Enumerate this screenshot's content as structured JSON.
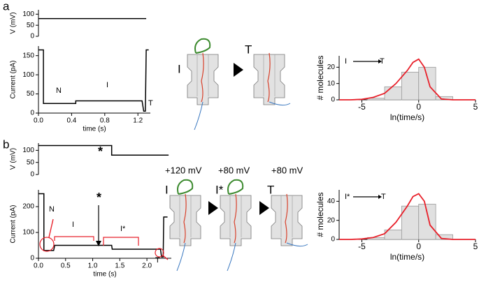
{
  "panels": [
    "a",
    "b"
  ],
  "diagram": {
    "a": [
      "I",
      "T"
    ],
    "b": {
      "voltages": [
        "+120 mV",
        "+80 mV",
        "+80 mV"
      ],
      "states": [
        "I",
        "I*",
        "T"
      ]
    }
  },
  "chart_data": [
    {
      "type": "line",
      "ylabel": "V (mV)",
      "ylim": [
        0,
        120
      ],
      "yticks": [
        0,
        50,
        100
      ],
      "xlim": [
        0,
        1.35
      ],
      "x": [
        0,
        1.3
      ],
      "series": [
        {
          "color": "#000000",
          "values": [
            80,
            80
          ]
        }
      ]
    },
    {
      "type": "line",
      "ylabel": "Current (pA)",
      "xlabel": "time (s)",
      "xlim": [
        0,
        1.35
      ],
      "ylim": [
        0,
        175
      ],
      "xticks": [
        {
          "value": 0,
          "label": "0.0"
        },
        0.4,
        0.8,
        1.2
      ],
      "yticks": [
        0,
        50,
        100,
        150
      ],
      "annotations": [
        "N",
        "I",
        "T"
      ],
      "x": [
        0,
        0.06,
        0.06,
        0.45,
        0.45,
        1.25,
        1.27,
        1.29,
        1.3,
        1.33
      ],
      "series": [
        {
          "color": "#000000",
          "values": [
            165,
            165,
            25,
            25,
            32,
            32,
            5,
            5,
            165,
            165
          ]
        }
      ]
    },
    {
      "type": "histogram",
      "ylabel": "# molecules",
      "xlabel": "ln(time/s)",
      "xlim": [
        -7,
        5
      ],
      "ylim": [
        0,
        27
      ],
      "xticks": [
        -5,
        0,
        5
      ],
      "yticks": [
        0,
        10,
        20
      ],
      "color": "#e0e0e0",
      "annotations": [
        "I",
        "T"
      ],
      "bins": [
        -4.5,
        -3,
        -1.5,
        0,
        1.5,
        3
      ],
      "values": [
        1,
        8,
        17,
        20,
        2
      ],
      "fit": {
        "color": "#e8202a",
        "x": [
          -7,
          -6,
          -5,
          -4,
          -3,
          -2,
          -1,
          -0.5,
          0,
          0.5,
          1,
          2,
          3,
          4,
          5
        ],
        "values": [
          0,
          0,
          0.3,
          1.5,
          4,
          10,
          18,
          23,
          25,
          20,
          8,
          0.5,
          0,
          0,
          0
        ]
      }
    },
    {
      "type": "line",
      "ylabel": "V (mV)",
      "ylim": [
        0,
        130
      ],
      "yticks": [
        0,
        50,
        100
      ],
      "xlim": [
        0,
        2.45
      ],
      "annotations": [
        "*"
      ],
      "x": [
        0,
        1.35,
        1.35,
        2.4
      ],
      "series": [
        {
          "color": "#000000",
          "values": [
            120,
            120,
            80,
            80
          ]
        }
      ]
    },
    {
      "type": "line",
      "ylabel": "Current (pA)",
      "xlabel": "time (s)",
      "xlim": [
        0,
        2.45
      ],
      "ylim": [
        0,
        265
      ],
      "xticks": [
        {
          "value": 0,
          "label": "0.0"
        },
        0.5,
        {
          "value": 1,
          "label": "1.0"
        },
        1.5,
        {
          "value": 2,
          "label": "2.0"
        }
      ],
      "yticks": [
        0,
        100,
        200
      ],
      "annotations": [
        "N",
        "I",
        "I*",
        "T",
        "*"
      ],
      "x": [
        0,
        0.1,
        0.1,
        0.28,
        0.3,
        1.35,
        1.36,
        2.25,
        2.27,
        2.3,
        2.31,
        2.38
      ],
      "series": [
        {
          "color": "#000000",
          "values": [
            250,
            250,
            30,
            30,
            50,
            50,
            35,
            35,
            5,
            5,
            160,
            160
          ]
        }
      ]
    },
    {
      "type": "histogram",
      "ylabel": "# molecules",
      "xlabel": "ln(time/s)",
      "xlim": [
        -7,
        5
      ],
      "ylim": [
        0,
        52
      ],
      "xticks": [
        -5,
        0,
        5
      ],
      "yticks": [
        0,
        20,
        40
      ],
      "color": "#e0e0e0",
      "annotations": [
        "I*",
        "T"
      ],
      "bins": [
        -4.5,
        -3,
        -1.5,
        0,
        1.5,
        3
      ],
      "values": [
        2,
        10,
        35,
        37,
        5
      ],
      "fit": {
        "color": "#e8202a",
        "x": [
          -7,
          -6,
          -5,
          -4,
          -3,
          -2,
          -1,
          -0.5,
          0,
          0.5,
          1,
          2,
          3,
          4,
          5
        ],
        "values": [
          0,
          0,
          0.5,
          2,
          6,
          18,
          35,
          45,
          48,
          40,
          15,
          1,
          0,
          0,
          0
        ]
      }
    }
  ]
}
